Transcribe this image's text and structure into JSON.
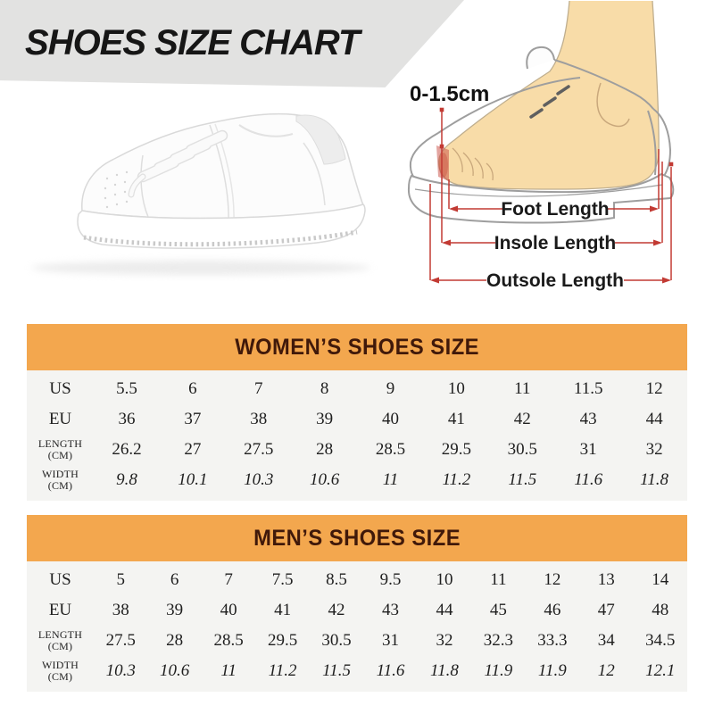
{
  "title": "SHOES SIZE CHART",
  "foot_diagram": {
    "toe_allowance": "0-1.5cm",
    "measurements": [
      "Foot Length",
      "Insole Length",
      "Outsole Length"
    ]
  },
  "colors": {
    "orange": "#f3a74e",
    "header-text": "#40190a",
    "table-bg": "#f4f4f2",
    "band-gray": "#e2e2e1",
    "red": "#c23a33"
  },
  "tables": [
    {
      "id": "women",
      "title": "WOMEN’S SHOES SIZE",
      "rows": [
        {
          "label": "US",
          "values": [
            "5.5",
            "6",
            "7",
            "8",
            "9",
            "10",
            "11",
            "11.5",
            "12"
          ],
          "italic": false
        },
        {
          "label": "EU",
          "values": [
            "36",
            "37",
            "38",
            "39",
            "40",
            "41",
            "42",
            "43",
            "44"
          ],
          "italic": false
        },
        {
          "label": "LENGTH",
          "label2": "(CM)",
          "values": [
            "26.2",
            "27",
            "27.5",
            "28",
            "28.5",
            "29.5",
            "30.5",
            "31",
            "32"
          ],
          "italic": false
        },
        {
          "label": "WIDTH",
          "label2": "(CM)",
          "values": [
            "9.8",
            "10.1",
            "10.3",
            "10.6",
            "11",
            "11.2",
            "11.5",
            "11.6",
            "11.8"
          ],
          "italic": true
        }
      ]
    },
    {
      "id": "men",
      "title": "MEN’S SHOES SIZE",
      "rows": [
        {
          "label": "US",
          "values": [
            "5",
            "6",
            "7",
            "7.5",
            "8.5",
            "9.5",
            "10",
            "11",
            "12",
            "13",
            "14"
          ],
          "italic": false
        },
        {
          "label": "EU",
          "values": [
            "38",
            "39",
            "40",
            "41",
            "42",
            "43",
            "44",
            "45",
            "46",
            "47",
            "48"
          ],
          "italic": false
        },
        {
          "label": "LENGTH",
          "label2": "(CM)",
          "values": [
            "27.5",
            "28",
            "28.5",
            "29.5",
            "30.5",
            "31",
            "32",
            "32.3",
            "33.3",
            "34",
            "34.5"
          ],
          "italic": false
        },
        {
          "label": "WIDTH",
          "label2": "(CM)",
          "values": [
            "10.3",
            "10.6",
            "11",
            "11.2",
            "11.5",
            "11.6",
            "11.8",
            "11.9",
            "11.9",
            "12",
            "12.1"
          ],
          "italic": true
        }
      ]
    }
  ]
}
